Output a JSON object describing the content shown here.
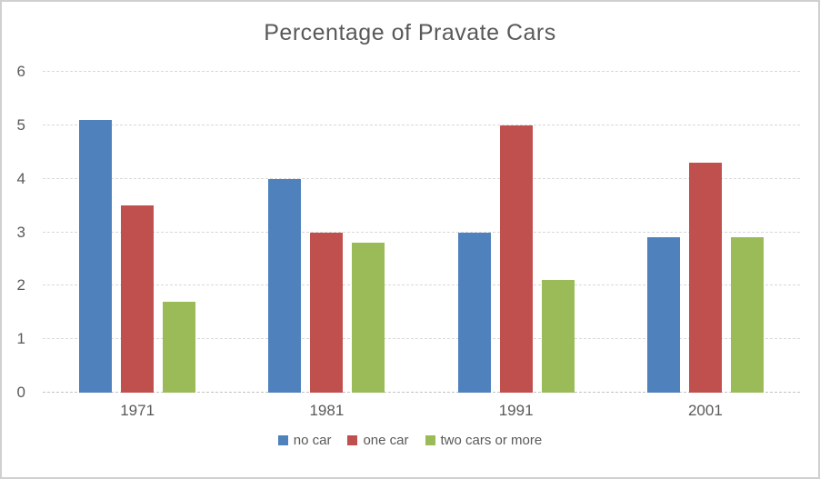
{
  "chart_data": {
    "type": "bar",
    "title": "Percentage of Pravate Cars",
    "categories": [
      "1971",
      "1981",
      "1991",
      "2001"
    ],
    "series": [
      {
        "name": "no car",
        "color": "#4F81BD",
        "values": [
          5.1,
          4.0,
          3.0,
          2.9
        ]
      },
      {
        "name": "one car",
        "color": "#C0504D",
        "values": [
          3.5,
          3.0,
          5.0,
          4.3
        ]
      },
      {
        "name": "two cars or more",
        "color": "#9BBB59",
        "values": [
          1.7,
          2.8,
          2.1,
          2.9
        ]
      }
    ],
    "xlabel": "",
    "ylabel": "",
    "ylim": [
      0,
      6
    ],
    "ytick_step": 1,
    "yticks": [
      "0",
      "1",
      "2",
      "3",
      "4",
      "5",
      "6"
    ],
    "grid": "horizontal-dashed",
    "legend_position": "bottom"
  },
  "colors": {
    "title_text": "#595959",
    "axis_text": "#595959",
    "gridline": "#D9D9D9",
    "frame_border": "#D2CFCF",
    "background": "#FFFFFF"
  }
}
